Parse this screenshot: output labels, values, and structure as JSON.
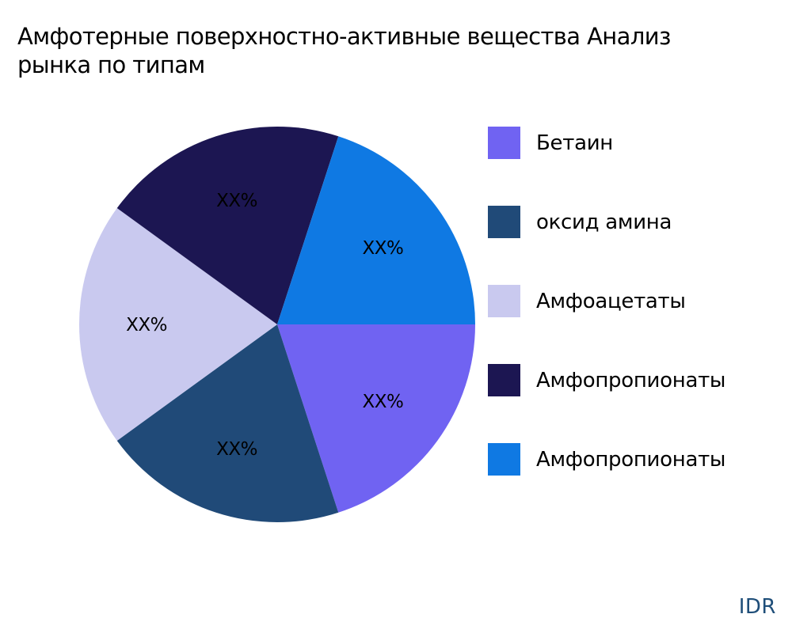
{
  "title": {
    "line1": "Амфотерные поверхностно-активные вещества Анализ",
    "line2": "рынка по типам"
  },
  "watermark": "IDR",
  "chart_data": {
    "type": "pie",
    "title": "Амфотерные поверхностно-активные вещества Анализ рынка по типам",
    "categories": [
      "Бетаин",
      "оксид амина",
      "Амфоацетаты",
      "Амфопропионаты",
      "Амфопропионаты"
    ],
    "values": [
      20,
      20,
      20,
      20,
      20
    ],
    "labels": [
      "XX%",
      "XX%",
      "XX%",
      "XX%",
      "XX%"
    ],
    "colors": [
      "#7063f2",
      "#204a78",
      "#c9c9ef",
      "#1c1652",
      "#0f79e3"
    ],
    "start_angle_deg": 0,
    "direction": "clockwise",
    "legend_position": "right"
  },
  "legend": {
    "items": [
      {
        "label": "Бетаин",
        "color": "#7063f2"
      },
      {
        "label": "оксид амина",
        "color": "#204a78"
      },
      {
        "label": "Амфоацетаты",
        "color": "#c9c9ef"
      },
      {
        "label": "Амфопропионаты",
        "color": "#1c1652"
      },
      {
        "label": "Амфопропионаты",
        "color": "#0f79e3"
      }
    ]
  }
}
